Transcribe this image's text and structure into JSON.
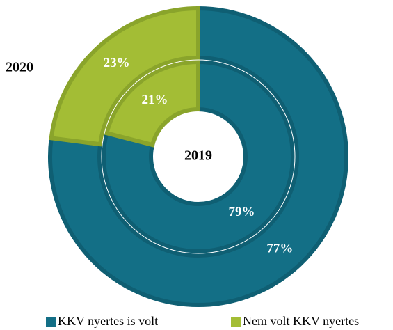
{
  "chart_data": {
    "type": "donut",
    "categories": [
      "KKV nyertes is volt",
      "Nem volt KKV nyertes"
    ],
    "colors": [
      "#136f86",
      "#a3bd35"
    ],
    "series": [
      {
        "name": "2019",
        "values": [
          79,
          21
        ],
        "value_labels": [
          "79%",
          "21%"
        ]
      },
      {
        "name": "2020",
        "values": [
          77,
          23
        ],
        "value_labels": [
          "77%",
          "23%"
        ]
      }
    ]
  }
}
